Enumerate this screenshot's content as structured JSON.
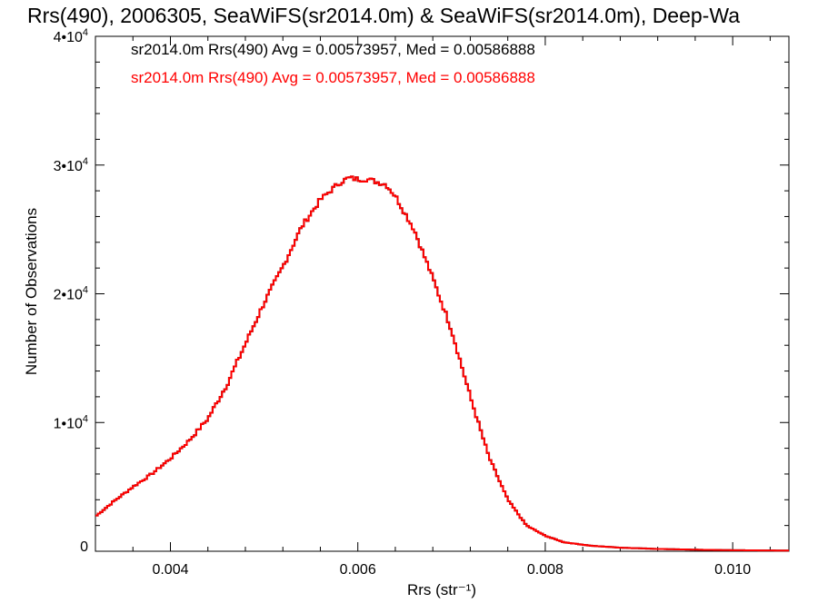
{
  "chart_data": {
    "type": "line",
    "title": "Rrs(490), 2006305, SeaWiFS(sr2014.0m) & SeaWiFS(sr2014.0m), Deep-Wa",
    "xlabel": "Rrs (str⁻¹)",
    "ylabel": "Number of Observations",
    "xlim": [
      0.0032,
      0.0106
    ],
    "ylim": [
      0,
      40000
    ],
    "x_ticks": [
      {
        "value": 0.004,
        "label": "0.004"
      },
      {
        "value": 0.006,
        "label": "0.006"
      },
      {
        "value": 0.008,
        "label": "0.008"
      },
      {
        "value": 0.01,
        "label": "0.010"
      }
    ],
    "y_ticks": [
      {
        "value": 0,
        "mant": "0",
        "exp": ""
      },
      {
        "value": 10000,
        "mant": "1•10",
        "exp": "4"
      },
      {
        "value": 20000,
        "mant": "2•10",
        "exp": "4"
      },
      {
        "value": 30000,
        "mant": "3•10",
        "exp": "4"
      },
      {
        "value": 40000,
        "mant": "4•10",
        "exp": "4"
      }
    ],
    "grid": false,
    "legend_position": "top-left",
    "series": [
      {
        "name": "sr2014.0m Rrs(490) Avg = 0.00573957, Med = 0.00586888",
        "color": "#000000",
        "x": [
          0.0032,
          0.0034,
          0.0036,
          0.0038,
          0.004,
          0.0042,
          0.0044,
          0.0046,
          0.0048,
          0.005,
          0.0052,
          0.0054,
          0.0056,
          0.0058,
          0.0059,
          0.006,
          0.0061,
          0.0062,
          0.0063,
          0.0064,
          0.0066,
          0.0068,
          0.007,
          0.0072,
          0.0074,
          0.0076,
          0.0078,
          0.008,
          0.0082,
          0.0085,
          0.0088,
          0.0092,
          0.0096,
          0.01,
          0.0106
        ],
        "y": [
          2700,
          3900,
          5000,
          6000,
          7200,
          8600,
          10300,
          12900,
          16100,
          19300,
          22100,
          25200,
          27300,
          28600,
          29000,
          28900,
          28900,
          28700,
          28500,
          27600,
          25000,
          21200,
          17200,
          12000,
          7300,
          4000,
          2000,
          1200,
          700,
          420,
          280,
          180,
          120,
          80,
          50
        ]
      },
      {
        "name": "sr2014.0m Rrs(490) Avg = 0.00573957, Med = 0.00586888",
        "color": "#ff0000",
        "x": [
          0.0032,
          0.0034,
          0.0036,
          0.0038,
          0.004,
          0.0042,
          0.0044,
          0.0046,
          0.0048,
          0.005,
          0.0052,
          0.0054,
          0.0056,
          0.0058,
          0.0059,
          0.006,
          0.0061,
          0.0062,
          0.0063,
          0.0064,
          0.0066,
          0.0068,
          0.007,
          0.0072,
          0.0074,
          0.0076,
          0.0078,
          0.008,
          0.0082,
          0.0085,
          0.0088,
          0.0092,
          0.0096,
          0.01,
          0.0106
        ],
        "y": [
          2700,
          3900,
          5000,
          6000,
          7200,
          8600,
          10300,
          12900,
          16100,
          19300,
          22100,
          25200,
          27300,
          28600,
          29000,
          28900,
          28900,
          28700,
          28500,
          27600,
          25000,
          21200,
          17200,
          12000,
          7300,
          4000,
          2000,
          1200,
          700,
          420,
          280,
          180,
          120,
          80,
          50
        ]
      }
    ]
  }
}
